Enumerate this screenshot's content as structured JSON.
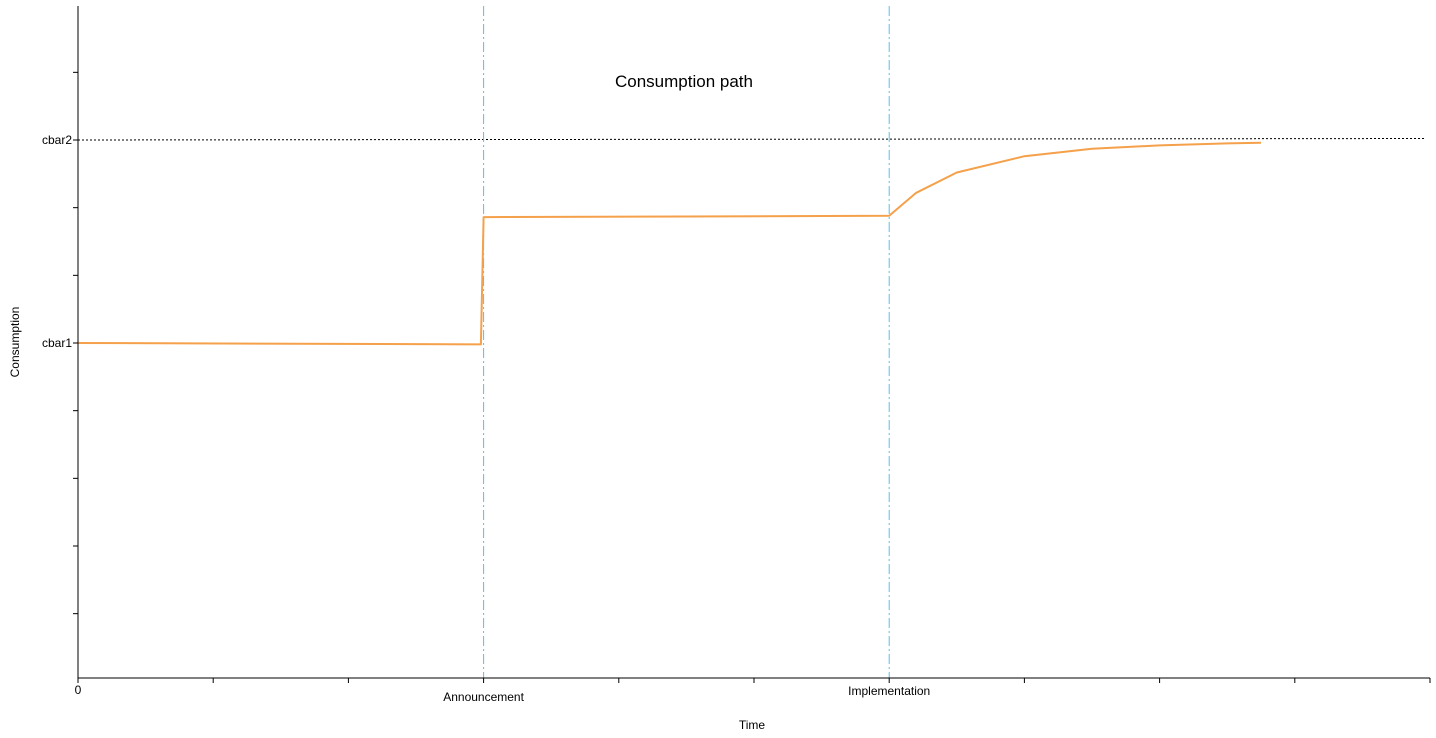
{
  "chart_data": {
    "type": "line",
    "title": "Consumption path",
    "xlabel": "Time",
    "ylabel": "Consumption",
    "xlim": [
      0,
      10
    ],
    "ylim": [
      0,
      10
    ],
    "x_tick_labels": [
      {
        "x": 0,
        "label": "0"
      },
      {
        "x": 3,
        "label": "Announcement"
      },
      {
        "x": 6,
        "label": "Implementation"
      }
    ],
    "y_tick_labels": [
      {
        "y": 5,
        "label": "cbar1"
      },
      {
        "y": 8,
        "label": "cbar2"
      }
    ],
    "x_minor_ticks": [
      1,
      2,
      4,
      5,
      7,
      8,
      9,
      10
    ],
    "y_minor_ticks": [
      1,
      2,
      3,
      4,
      6,
      7,
      9
    ],
    "reference_lines": [
      {
        "orientation": "horizontal",
        "y": 8,
        "style": "dotted",
        "color": "#000000"
      },
      {
        "orientation": "vertical",
        "x": 3,
        "style": "dash-dot",
        "color": "#4fc3e8"
      },
      {
        "orientation": "vertical",
        "x": 6,
        "style": "dash-dot",
        "color": "#4fc3e8"
      }
    ],
    "series": [
      {
        "color": "#f5a04a",
        "x": [
          0,
          2.98,
          3.0,
          3.02,
          4.5,
          6.0,
          6.2,
          6.5,
          7.0,
          7.5,
          8.0,
          8.5,
          8.75
        ],
        "y": [
          5.0,
          4.98,
          6.86,
          6.86,
          6.87,
          6.88,
          7.22,
          7.52,
          7.76,
          7.87,
          7.92,
          7.95,
          7.96
        ]
      }
    ],
    "grid": false,
    "legend": "none"
  }
}
